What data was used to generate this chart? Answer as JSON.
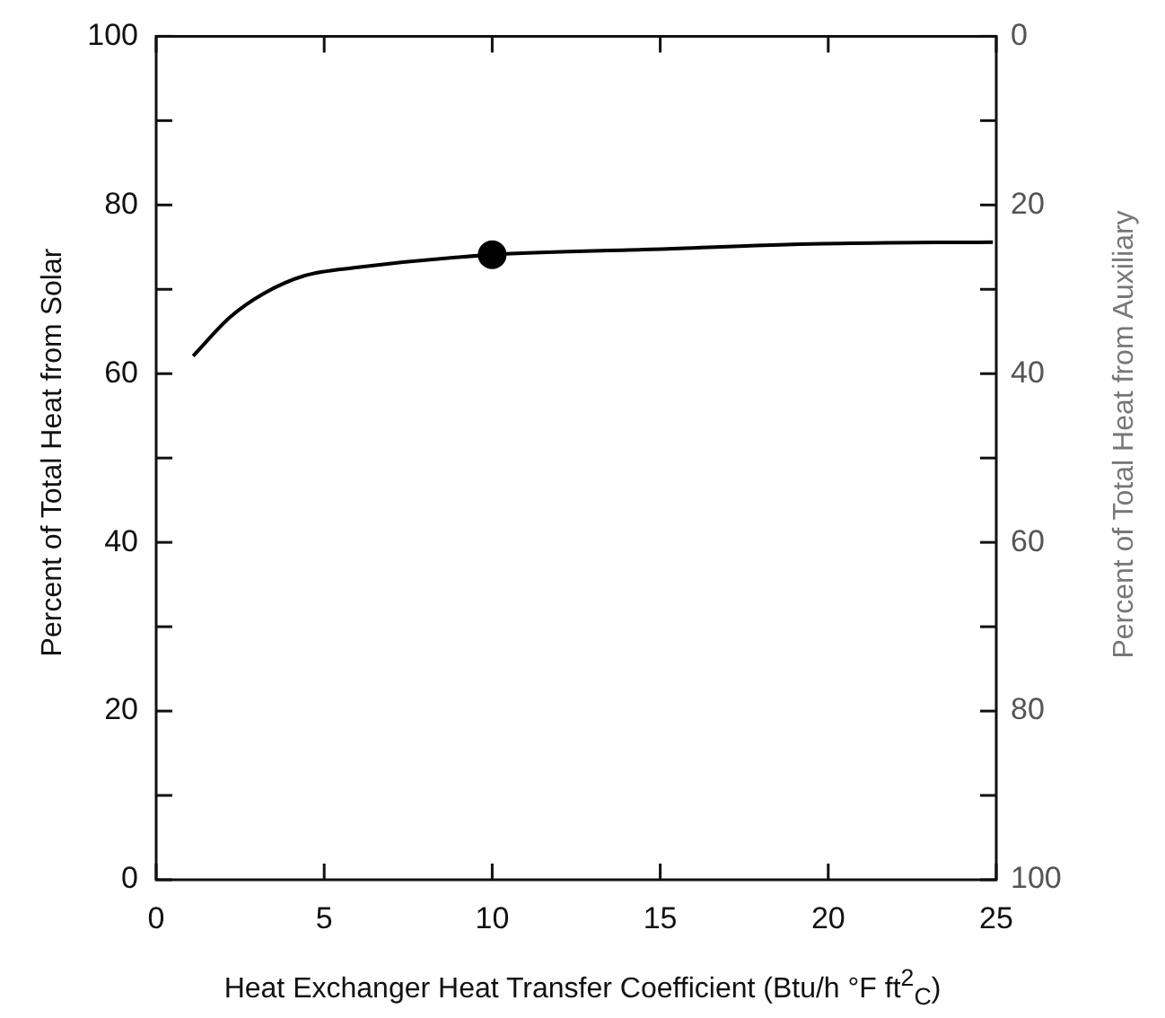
{
  "chart_data": {
    "type": "line",
    "xlabel": "Heat Exchanger Heat Transfer Coefficient (Btu/h °F ft$^{2}$$_{C}$)",
    "ylabel": "Percent of Total Heat from Solar",
    "y2label": "Percent of Total Heat from Auxiliary",
    "xlim": [
      0,
      25
    ],
    "xticks": [
      0,
      5,
      10,
      15,
      20,
      25
    ],
    "ylim": [
      0,
      100
    ],
    "yticks": [
      0,
      {
        "value": 10,
        "label": null
      },
      20,
      {
        "value": 30,
        "label": null
      },
      40,
      {
        "value": 50,
        "label": null
      },
      60,
      {
        "value": 70,
        "label": null
      },
      80,
      {
        "value": 90,
        "label": null
      },
      100
    ],
    "y2lim": [
      100,
      0
    ],
    "y2ticks": [
      100,
      {
        "value": 90,
        "label": null
      },
      80,
      {
        "value": 70,
        "label": null
      },
      60,
      {
        "value": 50,
        "label": null
      },
      40,
      {
        "value": 30,
        "label": null
      },
      20,
      {
        "value": 10,
        "label": null
      },
      0
    ],
    "grid": false,
    "legend": false,
    "series": [
      {
        "color": "#000000",
        "marker": "none",
        "x": [
          1.1,
          2.2,
          3.2,
          4.4,
          6.0,
          10.0,
          14.5,
          19.8,
          24.9
        ],
        "values": [
          62.1,
          66.7,
          69.5,
          71.6,
          72.6,
          74.1,
          74.7,
          75.4,
          75.6
        ]
      },
      {
        "type": "scatter",
        "color": "#000000",
        "marker": "circle",
        "x": [
          10
        ],
        "values": [
          74.1
        ]
      }
    ]
  }
}
